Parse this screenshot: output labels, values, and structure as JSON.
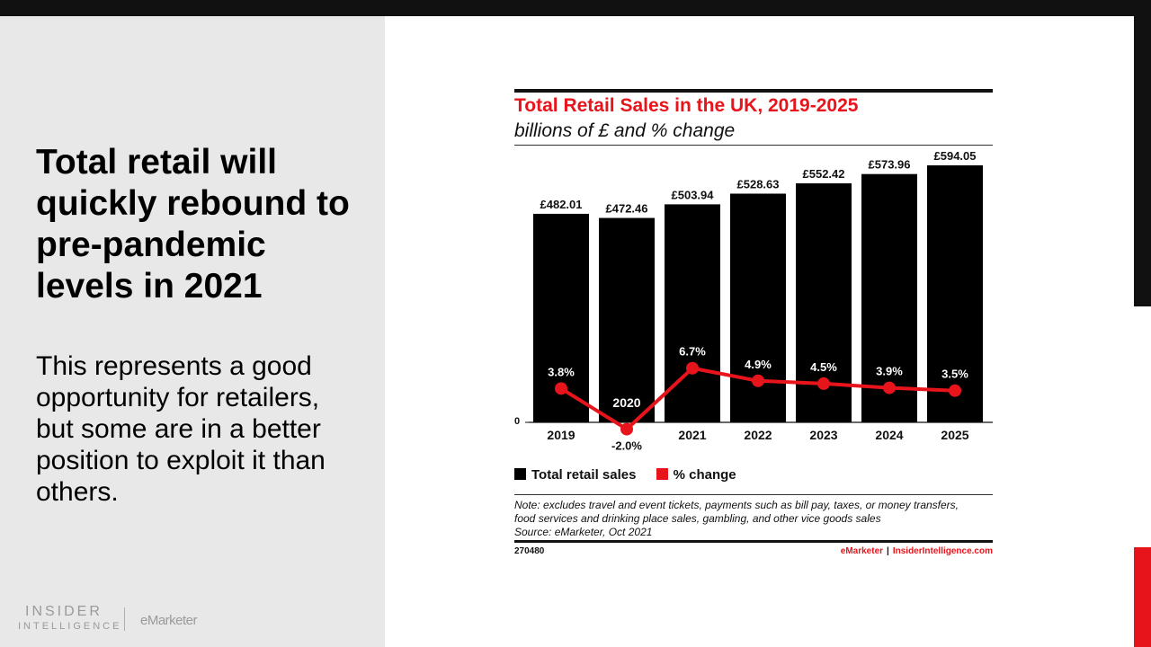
{
  "slide": {
    "headline": "Total retail will quickly rebound to pre-pandemic levels in 2021",
    "body": "This represents a good opportunity for retailers, but some are in a better position to exploit it than others."
  },
  "branding": {
    "logo_line1": "INSIDER",
    "logo_line2": "INTELLIGENCE",
    "emarketer": "eMarketer"
  },
  "chart_data": {
    "type": "bar",
    "title": "Total Retail Sales in the UK, 2019-2025",
    "subtitle": "billions of £ and % change",
    "categories": [
      "2019",
      "2020",
      "2021",
      "2022",
      "2023",
      "2024",
      "2025"
    ],
    "series": [
      {
        "name": "Total retail sales",
        "type": "bar",
        "values": [
          482.01,
          472.46,
          503.94,
          528.63,
          552.42,
          573.96,
          594.05
        ],
        "labels": [
          "£482.01",
          "£472.46",
          "£503.94",
          "£528.63",
          "£552.42",
          "£573.96",
          "£594.05"
        ],
        "color": "#000000"
      },
      {
        "name": "% change",
        "type": "line",
        "values": [
          3.8,
          -2.0,
          6.7,
          4.9,
          4.5,
          3.9,
          3.5
        ],
        "labels": [
          "3.8%",
          "-2.0%",
          "6.7%",
          "4.9%",
          "4.5%",
          "3.9%",
          "3.5%"
        ],
        "color": "#e8141c"
      }
    ],
    "zero_label": "0",
    "notes": [
      "Note: excludes travel and event tickets, payments such as bill pay, taxes, or money transfers,",
      "food services and drinking place sales, gambling, and other vice goods sales",
      "Source: eMarketer, Oct 2021"
    ],
    "chart_id": "270480",
    "credit_a": "eMarketer",
    "credit_sep": "|",
    "credit_b": "InsiderIntelligence.com"
  }
}
